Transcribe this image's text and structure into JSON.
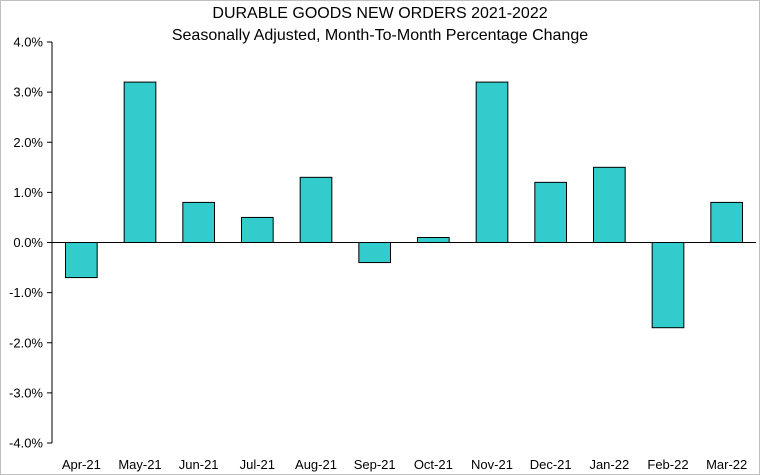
{
  "chart_data": {
    "type": "bar",
    "title": "DURABLE GOODS NEW ORDERS 2021-2022",
    "subtitle": "Seasonally Adjusted,  Month-To-Month Percentage Change",
    "xlabel": "",
    "ylabel": "",
    "categories": [
      "Apr-21",
      "May-21",
      "Jun-21",
      "Jul-21",
      "Aug-21",
      "Sep-21",
      "Oct-21",
      "Nov-21",
      "Dec-21",
      "Jan-22",
      "Feb-22",
      "Mar-22"
    ],
    "values": [
      -0.7,
      3.2,
      0.8,
      0.5,
      1.3,
      -0.4,
      0.1,
      3.2,
      1.2,
      1.5,
      -1.7,
      0.8
    ],
    "unit": "%",
    "ylim": [
      -4.0,
      4.0
    ],
    "yticks": [
      4.0,
      3.0,
      2.0,
      1.0,
      0.0,
      -1.0,
      -2.0,
      -3.0,
      -4.0
    ],
    "ytick_labels": [
      "4.0%",
      "3.0%",
      "2.0%",
      "1.0%",
      "0.0%",
      "-1.0%",
      "-2.0%",
      "-3.0%",
      "-4.0%"
    ],
    "grid": false,
    "legend": "none",
    "bar_color": "#33cccc",
    "bar_edge_color": "#000000"
  }
}
